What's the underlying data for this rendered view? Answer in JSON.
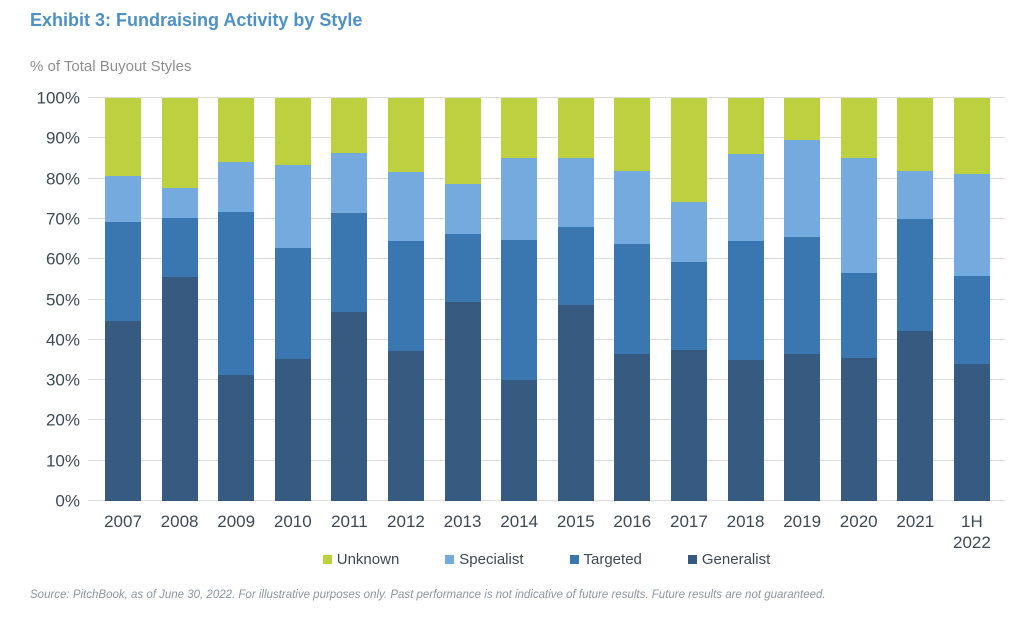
{
  "title": "Exhibit 3: Fundraising Activity by Style",
  "subtitle": "% of Total Buyout Styles",
  "source_note": "Source: PitchBook, as of June 30, 2022. For illustrative purposes only. Past performance is not indicative of future results. Future results are not guaranteed.",
  "colors": {
    "title_text": "#4e91c6",
    "subtitle_text": "#8e8e8e",
    "axis_text": "#3f4a56",
    "gridline": "#dcdcdc",
    "footer_text": "#8d96a1",
    "unknown": "#bdd140",
    "specialist": "#74aadd",
    "targeted": "#3a77b0",
    "generalist": "#365a80"
  },
  "chart_data": {
    "type": "bar",
    "stacked": true,
    "unit": "percent of total",
    "title": "Exhibit 3: Fundraising Activity by Style",
    "ylabel": "% of Total Buyout Styles",
    "xlabel": "",
    "categories": [
      "2007",
      "2008",
      "2009",
      "2010",
      "2011",
      "2012",
      "2013",
      "2014",
      "2015",
      "2016",
      "2017",
      "2018",
      "2019",
      "2020",
      "2021",
      "1H 2022"
    ],
    "series": [
      {
        "name": "Unknown",
        "color": "#bdd140",
        "values": [
          19.3,
          22.4,
          15.8,
          16.5,
          13.7,
          18.3,
          21.4,
          14.8,
          15.0,
          18.0,
          25.8,
          14.0,
          10.3,
          14.9,
          18.1,
          19.3
        ]
      },
      {
        "name": "Specialist",
        "color": "#74aadd",
        "values": [
          11.4,
          7.3,
          12.6,
          20.7,
          14.8,
          17.2,
          12.3,
          20.5,
          17.0,
          18.3,
          14.8,
          21.4,
          24.3,
          28.5,
          12.0,
          25.8
        ]
      },
      {
        "name": "Targeted",
        "color": "#3a77b0",
        "values": [
          24.7,
          14.7,
          40.4,
          27.6,
          24.7,
          27.3,
          17.0,
          34.7,
          19.3,
          27.3,
          22.0,
          29.5,
          28.8,
          21.2,
          27.7,
          22.3
        ]
      },
      {
        "name": "Generalist",
        "color": "#365a80",
        "values": [
          44.6,
          55.6,
          31.2,
          35.2,
          46.8,
          37.2,
          49.3,
          30.0,
          48.7,
          36.4,
          37.4,
          35.1,
          36.6,
          35.4,
          42.2,
          34.9
        ]
      }
    ],
    "stack_order_bottom_to_top": [
      "Generalist",
      "Targeted",
      "Specialist",
      "Unknown"
    ],
    "y_axis": {
      "min": 0,
      "max": 100,
      "step": 10,
      "tick_suffix": "%"
    },
    "y_ticks": [
      "0%",
      "10%",
      "20%",
      "30%",
      "40%",
      "50%",
      "60%",
      "70%",
      "80%",
      "90%",
      "100%"
    ],
    "legend_position": "bottom",
    "grid": "horizontal"
  }
}
